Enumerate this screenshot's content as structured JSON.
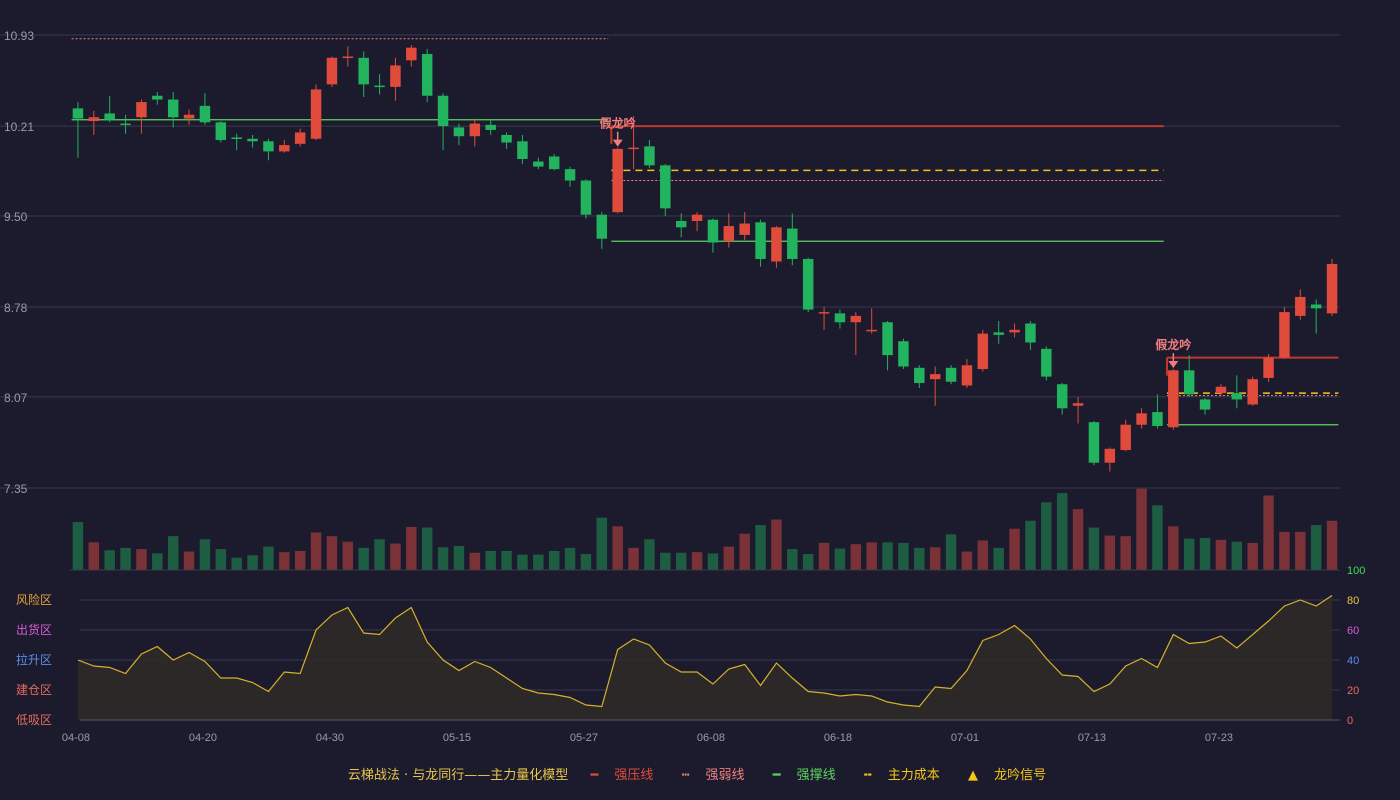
{
  "colors": {
    "bg": "#1b1b2d",
    "grid": "#3a3a4e",
    "up": "#e04b3c",
    "down": "#22b35e",
    "up_vol": "#7a3237",
    "down_vol": "#1d5e42",
    "strong_pressure": "#c0392b",
    "weak_line": "#f08080",
    "support_line": "#5fd35f",
    "cost_line": "#f5c518",
    "indicator_line": "#d7b12a",
    "indicator_fill": "#2f2a28",
    "signal": "#f07c7c",
    "axis_text": "#9a9aa8"
  },
  "chart_data": [
    {
      "type": "candlestick",
      "y_ticks": [
        "10.93",
        "10.21",
        "9.50",
        "8.78",
        "8.07",
        "7.35"
      ],
      "ylim": [
        7.35,
        10.93
      ],
      "x_ticks": [
        {
          "index": 0,
          "label": "04-08"
        },
        {
          "index": 8,
          "label": "04-20"
        },
        {
          "index": 16,
          "label": "04-30"
        },
        {
          "index": 24,
          "label": "05-15"
        },
        {
          "index": 32,
          "label": "05-27"
        },
        {
          "index": 40,
          "label": "06-08"
        },
        {
          "index": 48,
          "label": "06-18"
        },
        {
          "index": 56,
          "label": "07-01"
        },
        {
          "index": 64,
          "label": "07-13"
        },
        {
          "index": 72,
          "label": "07-23"
        }
      ],
      "candles": [
        [
          10.35,
          10.27,
          10.4,
          9.96
        ],
        [
          10.25,
          10.28,
          10.33,
          10.14
        ],
        [
          10.31,
          10.26,
          10.45,
          10.24
        ],
        [
          10.23,
          10.22,
          10.3,
          10.15
        ],
        [
          10.28,
          10.4,
          10.42,
          10.15
        ],
        [
          10.45,
          10.42,
          10.48,
          10.38
        ],
        [
          10.42,
          10.28,
          10.48,
          10.2
        ],
        [
          10.27,
          10.3,
          10.34,
          10.22
        ],
        [
          10.37,
          10.24,
          10.47,
          10.22
        ],
        [
          10.24,
          10.1,
          10.25,
          10.08
        ],
        [
          10.12,
          10.11,
          10.15,
          10.02
        ],
        [
          10.11,
          10.09,
          10.14,
          10.04
        ],
        [
          10.09,
          10.01,
          10.11,
          9.94
        ],
        [
          10.01,
          10.06,
          10.1,
          10.0
        ],
        [
          10.07,
          10.16,
          10.19,
          10.05
        ],
        [
          10.11,
          10.5,
          10.54,
          10.1
        ],
        [
          10.54,
          10.75,
          10.76,
          10.52
        ],
        [
          10.76,
          10.76,
          10.84,
          10.68
        ],
        [
          10.75,
          10.54,
          10.8,
          10.44
        ],
        [
          10.53,
          10.52,
          10.62,
          10.46
        ],
        [
          10.52,
          10.69,
          10.75,
          10.41
        ],
        [
          10.73,
          10.83,
          10.85,
          10.68
        ],
        [
          10.78,
          10.45,
          10.82,
          10.4
        ],
        [
          10.45,
          10.21,
          10.47,
          10.02
        ],
        [
          10.2,
          10.13,
          10.23,
          10.06
        ],
        [
          10.13,
          10.23,
          10.27,
          10.05
        ],
        [
          10.22,
          10.18,
          10.26,
          10.14
        ],
        [
          10.14,
          10.08,
          10.16,
          10.03
        ],
        [
          10.09,
          9.95,
          10.14,
          9.91
        ],
        [
          9.93,
          9.89,
          9.96,
          9.87
        ],
        [
          9.97,
          9.87,
          9.99,
          9.86
        ],
        [
          9.87,
          9.78,
          9.89,
          9.73
        ],
        [
          9.78,
          9.51,
          9.79,
          9.48
        ],
        [
          9.51,
          9.32,
          9.53,
          9.24
        ],
        [
          9.53,
          10.03,
          10.04,
          9.52
        ],
        [
          10.03,
          10.04,
          10.29,
          9.87
        ],
        [
          10.05,
          9.9,
          10.1,
          9.88
        ],
        [
          9.9,
          9.56,
          9.91,
          9.5
        ],
        [
          9.46,
          9.41,
          9.52,
          9.33
        ],
        [
          9.46,
          9.51,
          9.53,
          9.38
        ],
        [
          9.47,
          9.29,
          9.48,
          9.21
        ],
        [
          9.3,
          9.42,
          9.52,
          9.25
        ],
        [
          9.35,
          9.44,
          9.53,
          9.31
        ],
        [
          9.45,
          9.16,
          9.47,
          9.1
        ],
        [
          9.14,
          9.41,
          9.42,
          9.09
        ],
        [
          9.4,
          9.16,
          9.52,
          9.11
        ],
        [
          9.16,
          8.76,
          9.17,
          8.74
        ],
        [
          8.73,
          8.74,
          8.78,
          8.6
        ],
        [
          8.73,
          8.66,
          8.76,
          8.61
        ],
        [
          8.66,
          8.71,
          8.74,
          8.4
        ],
        [
          8.6,
          8.6,
          8.77,
          8.57
        ],
        [
          8.66,
          8.4,
          8.67,
          8.28
        ],
        [
          8.51,
          8.31,
          8.53,
          8.29
        ],
        [
          8.3,
          8.18,
          8.32,
          8.14
        ],
        [
          8.21,
          8.25,
          8.31,
          8.0
        ],
        [
          8.3,
          8.19,
          8.32,
          8.17
        ],
        [
          8.16,
          8.32,
          8.37,
          8.14
        ],
        [
          8.29,
          8.57,
          8.6,
          8.27
        ],
        [
          8.58,
          8.56,
          8.67,
          8.49
        ],
        [
          8.58,
          8.6,
          8.65,
          8.54
        ],
        [
          8.65,
          8.5,
          8.67,
          8.44
        ],
        [
          8.45,
          8.23,
          8.47,
          8.2
        ],
        [
          8.17,
          7.98,
          8.18,
          7.93
        ],
        [
          8.0,
          8.02,
          8.07,
          7.86
        ],
        [
          7.87,
          7.55,
          7.88,
          7.53
        ],
        [
          7.55,
          7.66,
          7.67,
          7.48
        ],
        [
          7.65,
          7.85,
          7.89,
          7.64
        ],
        [
          7.85,
          7.94,
          7.98,
          7.82
        ],
        [
          7.95,
          7.84,
          8.09,
          7.82
        ],
        [
          7.83,
          8.28,
          8.29,
          7.81
        ],
        [
          8.28,
          8.09,
          8.4,
          8.07
        ],
        [
          8.05,
          7.97,
          8.06,
          7.93
        ],
        [
          8.1,
          8.15,
          8.17,
          8.08
        ],
        [
          8.1,
          8.05,
          8.24,
          7.98
        ],
        [
          8.01,
          8.21,
          8.23,
          8.0
        ],
        [
          8.22,
          8.38,
          8.41,
          8.19
        ],
        [
          8.38,
          8.74,
          8.78,
          8.37
        ],
        [
          8.71,
          8.86,
          8.92,
          8.68
        ],
        [
          8.8,
          8.77,
          8.84,
          8.57
        ],
        [
          8.73,
          9.12,
          9.16,
          8.71
        ]
      ]
    },
    {
      "type": "bar",
      "volumes": [
        78,
        45,
        32,
        36,
        34,
        27,
        55,
        30,
        50,
        34,
        20,
        24,
        38,
        29,
        31,
        61,
        55,
        46,
        36,
        50,
        43,
        70,
        69,
        37,
        39,
        28,
        31,
        31,
        25,
        25,
        31,
        36,
        26,
        85,
        71,
        36,
        50,
        28,
        28,
        29,
        27,
        38,
        59,
        73,
        82,
        34,
        26,
        44,
        35,
        42,
        45,
        45,
        44,
        36,
        37,
        58,
        30,
        48,
        36,
        67,
        80,
        110,
        125,
        99,
        69,
        56,
        55,
        132,
        105,
        71,
        51,
        52,
        49,
        46,
        44,
        121,
        62,
        62,
        73,
        80
      ],
      "ylim": [
        0,
        130
      ]
    },
    {
      "type": "area",
      "y_ticks": [
        "100",
        "80",
        "60",
        "40",
        "20",
        "0"
      ],
      "ylim": [
        0,
        100
      ],
      "zone_labels": [
        "风险区",
        "出货区",
        "拉升区",
        "建仓区",
        "低吸区"
      ],
      "values": [
        40,
        36,
        35,
        31,
        44,
        49,
        40,
        45,
        39,
        28,
        28,
        25,
        19,
        32,
        31,
        60,
        70,
        75,
        58,
        57,
        68,
        75,
        52,
        40,
        33,
        39,
        35,
        28,
        21,
        18,
        17,
        15,
        10,
        9,
        47,
        54,
        50,
        38,
        32,
        32,
        24,
        34,
        37,
        23,
        38,
        28,
        19,
        18,
        16,
        17,
        16,
        12,
        10,
        9,
        22,
        21,
        33,
        53,
        57,
        63,
        54,
        41,
        30,
        29,
        19,
        24,
        36,
        41,
        35,
        57,
        51,
        52,
        56,
        48,
        57,
        66,
        76,
        80,
        76,
        83
      ]
    }
  ],
  "levels": [
    {
      "type": "weak",
      "from": 0,
      "to": 33,
      "value": 10.9
    },
    {
      "type": "support",
      "from": 0,
      "to": 33,
      "value": 10.26
    },
    {
      "type": "pressure",
      "from": 34,
      "to": 68,
      "value": 10.21
    },
    {
      "type": "cost",
      "from": 34,
      "to": 68,
      "value": 9.86
    },
    {
      "type": "weak",
      "from": 34,
      "to": 68,
      "value": 9.78
    },
    {
      "type": "support",
      "from": 34,
      "to": 68,
      "value": 9.3
    },
    {
      "type": "pressure",
      "from": 69,
      "to": 79,
      "value": 8.38
    },
    {
      "type": "cost",
      "from": 69,
      "to": 79,
      "value": 8.1
    },
    {
      "type": "weak",
      "from": 69,
      "to": 79,
      "value": 8.08
    },
    {
      "type": "support",
      "from": 69,
      "to": 79,
      "value": 7.85
    }
  ],
  "signals": [
    {
      "index": 34,
      "label": "假龙吟"
    },
    {
      "index": 69,
      "label": "假龙吟"
    }
  ],
  "legend": {
    "title": "云梯战法 · 与龙同行——主力量化模型",
    "items": [
      {
        "icon": "solid-line-icon",
        "label": "强压线",
        "color": "#e04b3c"
      },
      {
        "icon": "dotted-line-icon",
        "label": "强弱线",
        "color": "#f08080"
      },
      {
        "icon": "solid-line-icon",
        "label": "强撑线",
        "color": "#5fd35f"
      },
      {
        "icon": "dashed-line-icon",
        "label": "主力成本",
        "color": "#f5c518"
      },
      {
        "icon": "triangle-icon",
        "label": "龙吟信号",
        "color": "#f5c518"
      }
    ]
  }
}
